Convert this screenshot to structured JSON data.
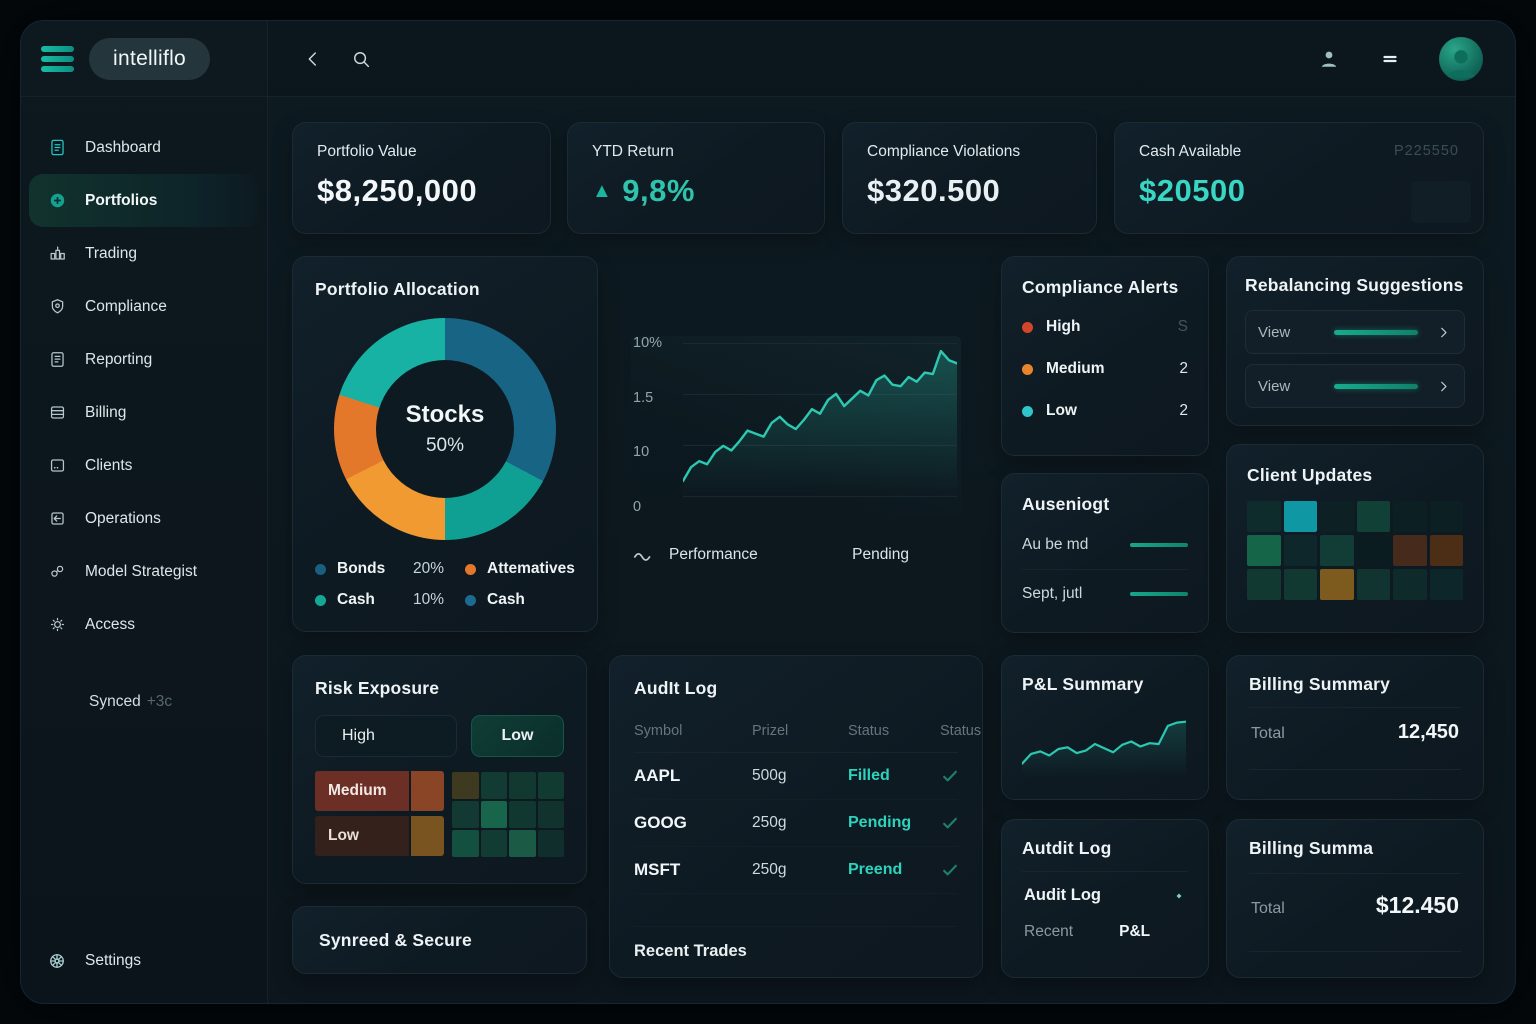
{
  "brand": {
    "logo_text": "intelliflo",
    "menu_icon": "hamburger-icon"
  },
  "topbar": {
    "back_icon": "chevron-left-icon",
    "search_icon": "search-icon",
    "user_icon": "person-icon",
    "menu_icon": "equals-icon",
    "avatar_icon": "person-avatar"
  },
  "sidebar": {
    "items": [
      {
        "label": "Dashboard",
        "icon": "file-text-icon",
        "icon_color": "#1fc9c0",
        "active": false
      },
      {
        "label": "Portfolios",
        "icon": "circle-plus-icon",
        "icon_color": "#14a190",
        "active": true
      },
      {
        "label": "Trading",
        "icon": "bar-chart-icon",
        "active": false
      },
      {
        "label": "Compliance",
        "icon": "shield-icon",
        "active": false
      },
      {
        "label": "Reporting",
        "icon": "report-icon",
        "active": false
      },
      {
        "label": "Billing",
        "icon": "rows-icon",
        "active": false
      },
      {
        "label": "Clients",
        "icon": "id-card-icon",
        "active": false
      },
      {
        "label": "Operations",
        "icon": "box-arrow-icon",
        "active": false
      },
      {
        "label": "Model Strategist",
        "icon": "link-icon",
        "active": false
      },
      {
        "label": "Access",
        "icon": "sun-icon",
        "active": false
      }
    ],
    "synced_label": "Synced",
    "synced_badge": "+3c",
    "settings_label": "Settings",
    "settings_icon": "wheel-icon"
  },
  "stats": [
    {
      "label": "Portfolio Value",
      "value": "$8,250,000",
      "value_color": "#f3f7f9"
    },
    {
      "label": "YTD Return",
      "value": "9,8%",
      "value_color": "#2fc3ae",
      "arrow": "▲",
      "arrow_color": "#1db59e"
    },
    {
      "label": "Compliance Violations",
      "value": "$320.500",
      "value_color": "#e9f0f3"
    },
    {
      "label": "Cash Available",
      "value": "$20500",
      "value_color": "#38d6c3",
      "watermark": "P225550"
    }
  ],
  "allocation": {
    "title": "Portfolio Allocation",
    "center_label": "Stocks",
    "center_value": "50%",
    "segments": [
      {
        "name": "Bonds",
        "color": "#186484",
        "from": 0,
        "to": 118
      },
      {
        "name": "Cash",
        "color": "#0fa093",
        "from": 118,
        "to": 180
      },
      {
        "name": "Alternatives",
        "color": "#f09a31",
        "from": 180,
        "to": 243
      },
      {
        "name": "Alternatives",
        "color": "#e4782a",
        "from": 243,
        "to": 288
      },
      {
        "name": "Cash",
        "color": "#17b2a4",
        "from": 288,
        "to": 360
      }
    ],
    "legend": [
      {
        "dot": "#1a5f80",
        "label": "Bonds",
        "pct": "20%",
        "dot2": "#e4772a",
        "label2": "Attematives"
      },
      {
        "dot": "#14a795",
        "label": "Cash",
        "pct": "10%",
        "dot2": "#1a6a92",
        "label2": "Cash"
      }
    ]
  },
  "compliance_alerts": {
    "title": "Compliance Alerts",
    "rows": [
      {
        "label": "High",
        "dot": "#d2452a",
        "value": "S",
        "muted": true
      },
      {
        "label": "Medium",
        "dot": "#e9842d",
        "value": "2",
        "muted": false
      },
      {
        "label": "Low",
        "dot": "#2fc5ca",
        "value": "2",
        "muted": false
      }
    ]
  },
  "rebalancing": {
    "title": "Rebalancing Suggestions",
    "rows": [
      {
        "label": "View"
      },
      {
        "label": "View"
      }
    ]
  },
  "auseniogt": {
    "title": "Auseniogt",
    "rows": [
      {
        "label": "Au be md"
      },
      {
        "label": "Sept, jutl"
      }
    ]
  },
  "client_updates": {
    "title": "Client Updates",
    "grid": [
      [
        "#0f2c2d",
        "#0f98a3",
        "#0d2125",
        "#114036",
        "#0c1f23",
        "#0c1f23"
      ],
      [
        "#156549",
        "#0e272b",
        "#113d36",
        "#0b1c21",
        "#462a1b",
        "#4c2d16"
      ],
      [
        "#123832",
        "#123832",
        "#7d5a1e",
        "#113430",
        "#0e2a2a",
        "#0d2629"
      ]
    ]
  },
  "risk": {
    "title": "Risk Exposure",
    "btn_high": "High",
    "btn_low": "Low",
    "bars": [
      {
        "label": "Medium",
        "bar_color": "#6b2f26",
        "text_color": "#f2e8e4",
        "sq_color": "#8a4526"
      },
      {
        "label": "Low",
        "bar_color": "#35211b",
        "text_color": "#eadfd9",
        "sq_color": "#7a5420"
      }
    ],
    "grid": [
      [
        "#3e3a20",
        "#123c33",
        "#113930",
        "#113a31"
      ],
      [
        "#123a32",
        "#17654b",
        "#113830",
        "#12332d"
      ],
      [
        "#14503f",
        "#123c33",
        "#1b5b46",
        "#102e2b"
      ]
    ]
  },
  "audit_log": {
    "title": "AudIt Log",
    "headers": [
      "Symbol",
      "Prizel",
      "Status",
      "Status"
    ],
    "rows": [
      {
        "symbol": "AAPL",
        "qty": "500g",
        "status": "Filled"
      },
      {
        "symbol": "GOOG",
        "qty": "250g",
        "status": "Pending"
      },
      {
        "symbol": "MSFT",
        "qty": "250g",
        "status": "Preend"
      }
    ],
    "status_color": "#2dd3bd",
    "check_color": "#1f7f68",
    "footer": "Recent Trades"
  },
  "pl_summary": {
    "title": "P&L Summary"
  },
  "billing_summary": {
    "title": "Billing Summary",
    "total_label": "Total",
    "total_value": "12,450"
  },
  "autdit_log": {
    "title": "Autdit Log",
    "item_label": "Audit Log",
    "tab1": "Recent",
    "tab2": "P&L"
  },
  "billing_summa": {
    "title": "Billing Summa",
    "total_label": "Total",
    "total_value": "$12.450"
  },
  "synreed": {
    "title": "Synreed & Secure"
  },
  "chart_data": [
    {
      "type": "pie",
      "title": "Portfolio Allocation",
      "center_text": "Stocks 50%",
      "slices": [
        {
          "label": "Stocks",
          "value": 50
        },
        {
          "label": "Bonds",
          "value": 20
        },
        {
          "label": "Cash",
          "value": 10
        },
        {
          "label": "Attematives",
          "value": 12
        },
        {
          "label": "Cash",
          "value": 8
        }
      ]
    },
    {
      "type": "line",
      "title": "Performance",
      "legend": [
        "Performance",
        "Pending"
      ],
      "ylabels": [
        "10%",
        "1.5",
        "10",
        "0"
      ],
      "ylim": [
        0,
        10
      ],
      "line_color": "#2cc8b2",
      "values": [
        1.0,
        1.9,
        2.3,
        2.1,
        2.9,
        3.3,
        3.0,
        3.6,
        4.3,
        4.1,
        3.9,
        4.8,
        5.2,
        4.7,
        4.4,
        5.0,
        5.7,
        5.4,
        6.3,
        6.7,
        5.9,
        6.4,
        6.9,
        6.6,
        7.6,
        7.9,
        7.3,
        7.2,
        7.8,
        7.5,
        8.1,
        8.0,
        9.5,
        8.9,
        8.7
      ]
    },
    {
      "type": "line",
      "title": "P&L Summary",
      "line_color": "#2cc8b2",
      "ylim": [
        0,
        8
      ],
      "values": [
        1.6,
        2.8,
        3.1,
        2.6,
        3.4,
        3.6,
        2.9,
        3.2,
        4.0,
        3.5,
        3.0,
        3.9,
        4.3,
        3.7,
        4.1,
        4.0,
        6.2,
        6.6,
        6.7
      ]
    }
  ]
}
